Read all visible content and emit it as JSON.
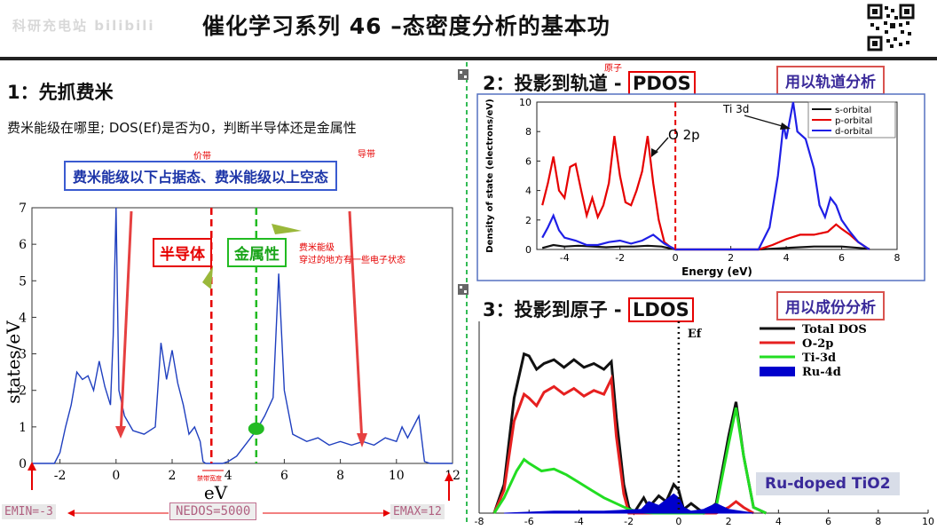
{
  "header": {
    "title": "催化学习系列 46 –态密度分析的基本功",
    "watermark": "科研充电站 bilibili"
  },
  "section1": {
    "title": "1：先抓费米",
    "question": "费米能级在哪里; DOS(Ef)是否为0，判断半导体还是金属性",
    "bluebox": "费米能级以下占据态、费米能级以上空态",
    "valence_label": "价带",
    "conduction_label": "导带",
    "semiconductor_label": "半导体",
    "metal_label": "金属性",
    "metal_note_line1": "费米能级",
    "metal_note_line2": "穿过的地方有一些电子状态",
    "gap_label": "禁带宽度",
    "emin": "EMIN=-3",
    "nedos": "NEDOS=5000",
    "emax": "EMAX=12"
  },
  "section2": {
    "title_prefix": "2：投影到轨道 - ",
    "title_boxed": "PDOS",
    "side_label": "用以轨道分析",
    "atom_note": "原子",
    "annotation_ti": "Ti 3d",
    "annotation_o": "O 2p"
  },
  "section3": {
    "title_prefix": "3：投影到原子 - ",
    "title_boxed": "LDOS",
    "side_label": "用以成份分析",
    "ef_label": "Ef",
    "badge": "Ru-doped TiO2"
  },
  "chart_data": [
    {
      "type": "line",
      "xlabel": "eV",
      "ylabel": "states/eV",
      "xlim": [
        -3,
        12
      ],
      "ylim": [
        0,
        7
      ],
      "xticks": [
        -2,
        0,
        2,
        4,
        6,
        8,
        10,
        12
      ],
      "yticks": [
        0,
        1,
        2,
        3,
        4,
        5,
        6,
        7
      ],
      "colors": {
        "line": "#1f3fbf",
        "semiconductor_line": "#e60000",
        "metal_line": "#22bb22"
      },
      "semiconductor_ef": 3.4,
      "metal_ef": 5.0,
      "x": [
        -3,
        -2.2,
        -2.0,
        -1.8,
        -1.6,
        -1.4,
        -1.2,
        -1.0,
        -0.8,
        -0.6,
        -0.4,
        -0.2,
        -0.1,
        0.0,
        0.1,
        0.3,
        0.6,
        1.0,
        1.4,
        1.6,
        1.8,
        2.0,
        2.2,
        2.4,
        2.6,
        2.8,
        3.0,
        3.1,
        3.2,
        3.4,
        3.6,
        3.8,
        4.0,
        4.3,
        4.6,
        5.0,
        5.3,
        5.6,
        5.8,
        6.0,
        6.3,
        6.8,
        7.2,
        7.6,
        8.0,
        8.4,
        8.8,
        9.2,
        9.6,
        10.0,
        10.2,
        10.4,
        10.8,
        11.0,
        11.2,
        12
      ],
      "y": [
        0,
        0,
        0.3,
        1.0,
        1.6,
        2.5,
        2.3,
        2.4,
        2.0,
        2.8,
        2.1,
        1.6,
        3.5,
        7.0,
        2.0,
        1.3,
        0.9,
        0.8,
        1.0,
        3.3,
        2.3,
        3.1,
        2.2,
        1.6,
        0.8,
        1.0,
        0.6,
        0.05,
        0,
        0,
        0,
        0,
        0.05,
        0.2,
        0.5,
        0.9,
        1.3,
        1.8,
        5.2,
        2.0,
        0.8,
        0.6,
        0.7,
        0.5,
        0.6,
        0.5,
        0.6,
        0.5,
        0.7,
        0.6,
        1.0,
        0.7,
        1.3,
        0.05,
        0,
        0
      ]
    },
    {
      "type": "line",
      "xlabel": "Energy (eV)",
      "ylabel": "Density of state (electrons/eV)",
      "xlim": [
        -5,
        8
      ],
      "ylim": [
        0,
        10
      ],
      "xticks": [
        -4,
        -2,
        0,
        2,
        4,
        6,
        8
      ],
      "yticks": [
        0,
        2,
        4,
        6,
        8,
        10
      ],
      "fermi": 0,
      "series": [
        {
          "name": "s-orbital",
          "color": "#111111",
          "x": [
            -4.8,
            -4.4,
            -4.0,
            -3.5,
            -3.0,
            -2.5,
            -2.0,
            -1.5,
            -1.0,
            -0.5,
            0.0,
            3.0,
            4.0,
            5.0,
            6.0,
            7.0
          ],
          "y": [
            0.1,
            0.3,
            0.2,
            0.25,
            0.2,
            0.15,
            0.2,
            0.2,
            0.25,
            0.2,
            0.0,
            0.0,
            0.1,
            0.2,
            0.2,
            0.05
          ]
        },
        {
          "name": "p-orbital",
          "color": "#e60000",
          "x": [
            -4.8,
            -4.6,
            -4.4,
            -4.2,
            -4.0,
            -3.8,
            -3.6,
            -3.4,
            -3.2,
            -3.0,
            -2.8,
            -2.6,
            -2.4,
            -2.2,
            -2.0,
            -1.8,
            -1.6,
            -1.4,
            -1.2,
            -1.0,
            -0.8,
            -0.6,
            -0.4,
            -0.2,
            0.0,
            3.0,
            3.5,
            4.0,
            4.5,
            5.0,
            5.5,
            5.8,
            6.0,
            6.3,
            6.6,
            7.0
          ],
          "y": [
            3.0,
            4.5,
            6.3,
            4.0,
            3.5,
            5.6,
            5.8,
            4.0,
            2.3,
            3.5,
            2.2,
            3.0,
            4.5,
            7.7,
            5.0,
            3.2,
            3.0,
            4.0,
            5.3,
            7.7,
            4.5,
            2.0,
            0.5,
            0.2,
            0.0,
            0.0,
            0.3,
            0.7,
            1.0,
            1.0,
            1.2,
            1.7,
            1.4,
            1.0,
            0.5,
            0.0
          ]
        },
        {
          "name": "d-orbital",
          "color": "#1f1fe6",
          "x": [
            -4.8,
            -4.6,
            -4.4,
            -4.2,
            -4.0,
            -3.6,
            -3.2,
            -2.8,
            -2.4,
            -2.0,
            -1.6,
            -1.2,
            -0.8,
            -0.4,
            0.0,
            3.0,
            3.4,
            3.7,
            3.9,
            4.0,
            4.1,
            4.25,
            4.4,
            4.7,
            5.0,
            5.2,
            5.4,
            5.6,
            5.8,
            6.0,
            6.3,
            6.6,
            7.0
          ],
          "y": [
            0.8,
            1.5,
            2.3,
            1.3,
            0.8,
            0.6,
            0.3,
            0.3,
            0.5,
            0.6,
            0.4,
            0.6,
            1.0,
            0.4,
            0.0,
            0.0,
            1.5,
            5.0,
            8.5,
            7.5,
            8.5,
            10.0,
            8.0,
            7.5,
            5.5,
            3.0,
            2.2,
            3.5,
            3.0,
            2.0,
            1.2,
            0.5,
            0.0
          ]
        }
      ],
      "legend_position": "top-right"
    },
    {
      "type": "area",
      "xlim": [
        -8,
        10
      ],
      "ylim": [
        0,
        10
      ],
      "xticks": [
        -8,
        -6,
        -4,
        -2,
        0,
        2,
        4,
        6,
        8,
        10
      ],
      "fermi_label": "Ef",
      "fermi": 0,
      "series": [
        {
          "name": "Total DOS",
          "color": "#111111",
          "x": [
            -7.4,
            -7.0,
            -6.6,
            -6.2,
            -6.0,
            -5.7,
            -5.4,
            -5.0,
            -4.6,
            -4.2,
            -3.8,
            -3.4,
            -3.0,
            -2.7,
            -2.5,
            -2.2,
            -2.0,
            -1.8,
            -1.4,
            -1.2,
            -0.8,
            -0.5,
            -0.2,
            0.0,
            0.2,
            0.5,
            1.0,
            1.5,
            2.0,
            2.3,
            2.6,
            3.0,
            3.5
          ],
          "y": [
            0.0,
            1.5,
            6.0,
            8.3,
            8.2,
            7.5,
            7.8,
            8.0,
            7.6,
            8.0,
            7.6,
            7.8,
            7.5,
            7.9,
            5.0,
            1.5,
            0.3,
            0.0,
            0.8,
            0.3,
            0.9,
            0.6,
            1.5,
            1.2,
            0.2,
            0.5,
            0.0,
            0.5,
            4.0,
            5.8,
            3.0,
            0.3,
            0.0
          ]
        },
        {
          "name": "O-2p",
          "color": "#e62020",
          "x": [
            -7.4,
            -7.0,
            -6.6,
            -6.2,
            -6.0,
            -5.7,
            -5.4,
            -5.0,
            -4.6,
            -4.2,
            -3.8,
            -3.4,
            -3.0,
            -2.7,
            -2.5,
            -2.2,
            -2.0,
            0.0,
            1.5,
            2.0,
            2.3,
            2.6,
            3.0
          ],
          "y": [
            0.0,
            1.2,
            4.8,
            6.2,
            6.0,
            5.6,
            6.3,
            6.6,
            6.2,
            6.5,
            6.1,
            6.4,
            6.2,
            7.0,
            4.0,
            1.0,
            0.0,
            0.0,
            0.0,
            0.3,
            0.6,
            0.3,
            0.0
          ]
        },
        {
          "name": "Ti-3d",
          "color": "#22dd22",
          "x": [
            -7.4,
            -7.0,
            -6.5,
            -6.2,
            -6.0,
            -5.5,
            -5.0,
            -4.5,
            -4.0,
            -3.5,
            -3.0,
            -2.5,
            -2.0,
            -1.5,
            -1.0,
            0.0,
            1.0,
            1.5,
            2.0,
            2.3,
            2.6,
            3.0,
            3.5
          ],
          "y": [
            0.0,
            0.8,
            2.2,
            2.8,
            2.6,
            2.2,
            2.3,
            2.0,
            1.6,
            1.2,
            0.8,
            0.5,
            0.2,
            0.05,
            0.0,
            0.0,
            0.0,
            0.3,
            3.6,
            5.5,
            3.0,
            0.3,
            0.0
          ]
        },
        {
          "name": "Ru-4d",
          "color": "#0000cc",
          "x": [
            -7.0,
            -5.0,
            -3.0,
            -1.5,
            -1.2,
            -0.8,
            -0.5,
            -0.2,
            0.0,
            0.2,
            0.5,
            1.0,
            1.5,
            2.0,
            3.0
          ],
          "y": [
            0.0,
            0.1,
            0.1,
            0.2,
            0.6,
            0.4,
            0.7,
            1.0,
            0.8,
            0.3,
            0.1,
            0.2,
            0.5,
            0.2,
            0.0
          ]
        }
      ],
      "legend_position": "top-right"
    }
  ]
}
